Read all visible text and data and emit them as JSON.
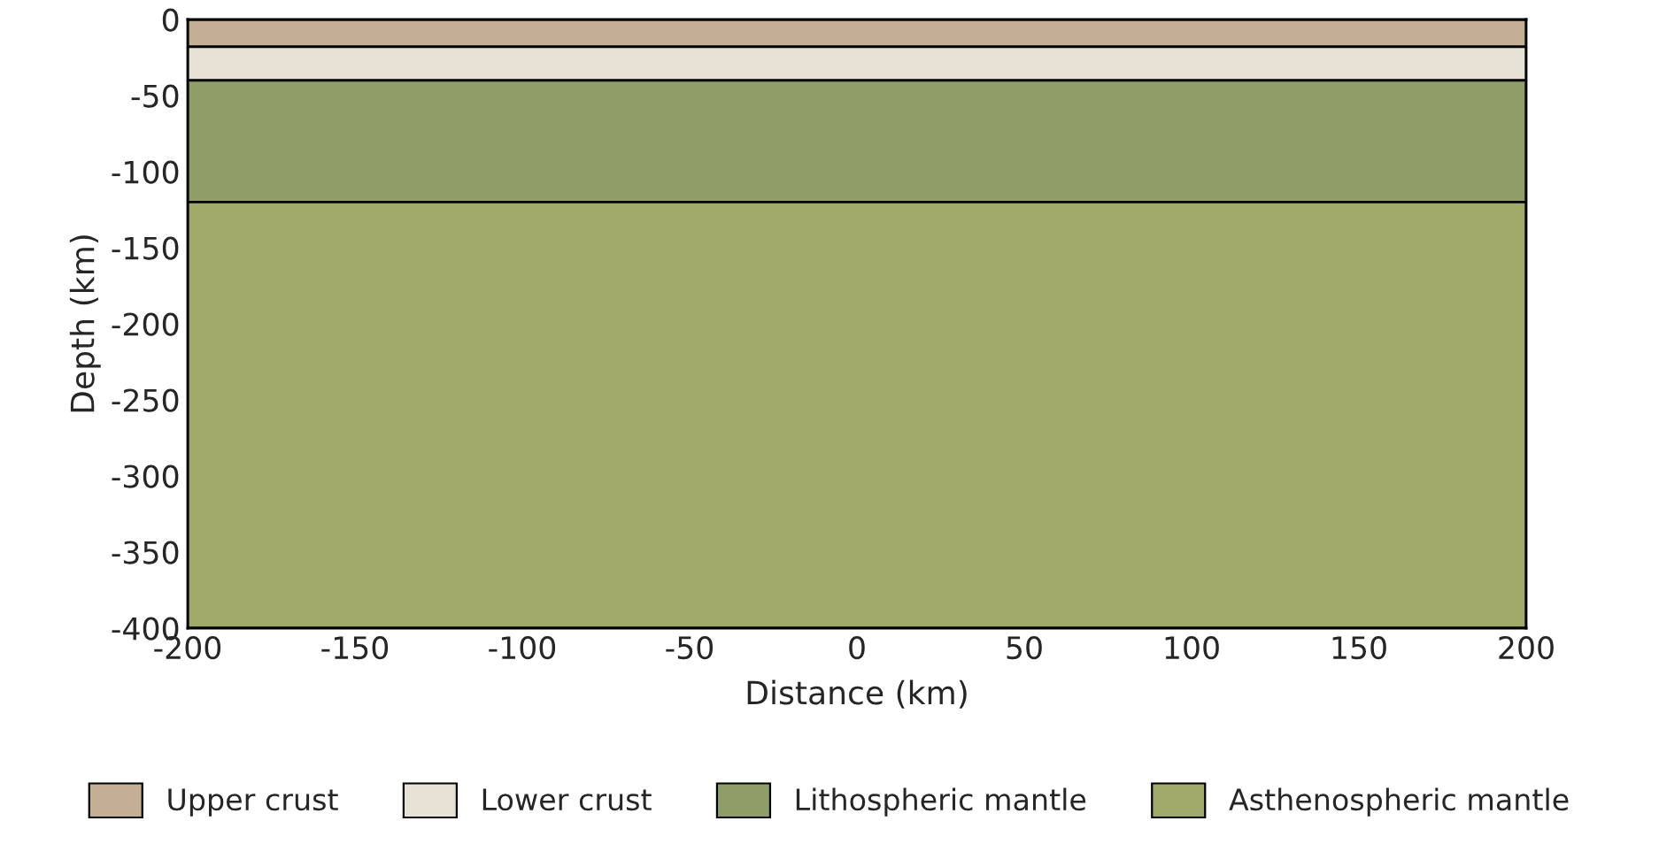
{
  "chart_data": {
    "type": "area",
    "stacked": true,
    "xlabel": "Distance (km)",
    "ylabel": "Depth (km)",
    "x": [
      -200,
      200
    ],
    "series": [
      {
        "name": "Upper crust",
        "color": "#c4ae96",
        "values": [
          -18,
          -18
        ]
      },
      {
        "name": "Lower crust",
        "color": "#e8e1d5",
        "values": [
          -22,
          -22
        ]
      },
      {
        "name": "Lithospheric mantle",
        "color": "#8f9e68",
        "values": [
          -80,
          -80
        ]
      },
      {
        "name": "Asthenospheric mantle",
        "color": "#a1a96a",
        "values": [
          -280,
          -280
        ]
      }
    ],
    "xlim": [
      -200,
      200
    ],
    "ylim": [
      -400,
      0
    ],
    "xticks": [
      {
        "value": -200,
        "label": "-200"
      },
      {
        "value": -150,
        "label": "-150"
      },
      {
        "value": -100,
        "label": "-100"
      },
      {
        "value": -50,
        "label": "-50"
      },
      0,
      50,
      100,
      150,
      200
    ],
    "yticks": [
      {
        "value": -400,
        "label": "-400"
      },
      {
        "value": -350,
        "label": "-350"
      },
      {
        "value": -300,
        "label": "-300"
      },
      {
        "value": -250,
        "label": "-250"
      },
      {
        "value": -200,
        "label": "-200"
      },
      {
        "value": -150,
        "label": "-150"
      },
      {
        "value": -100,
        "label": "-100"
      },
      {
        "value": -50,
        "label": "-50"
      },
      0
    ],
    "legend": "bottom"
  }
}
